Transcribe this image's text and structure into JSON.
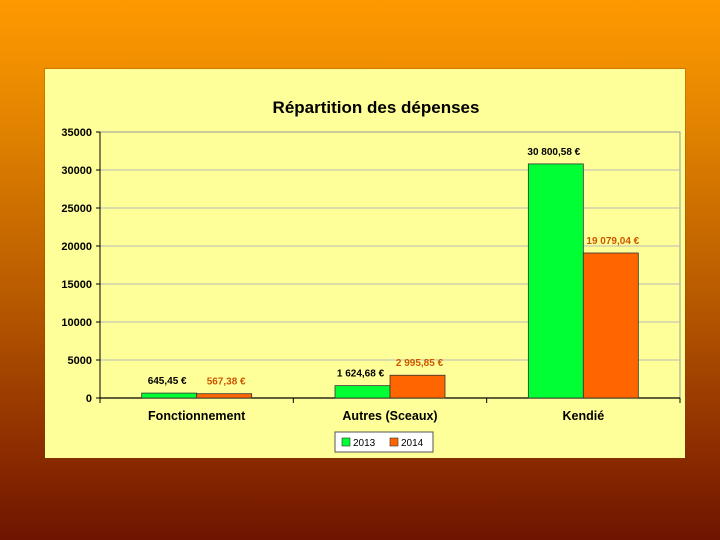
{
  "chart_data": {
    "type": "bar",
    "title": "Répartition des dépenses",
    "xlabel": "",
    "ylabel": "",
    "categories": [
      "Fonctionnement",
      "Autres (Sceaux)",
      "Kendié"
    ],
    "series": [
      {
        "name": "2013",
        "color": "#00ff33",
        "values": [
          645.45,
          1624.68,
          30800.58
        ],
        "labels": [
          "645,45 €",
          "1 624,68 €",
          "30 800,58 €"
        ],
        "label_color": "#000000"
      },
      {
        "name": "2014",
        "color": "#ff6600",
        "values": [
          567.38,
          2995.85,
          19079.04
        ],
        "labels": [
          "567,38 €",
          "2 995,85 €",
          "19 079,04 €"
        ],
        "label_color": "#cc5500"
      }
    ],
    "ylim": [
      0,
      35000
    ],
    "yticks": [
      "0",
      "5000",
      "10000",
      "15000",
      "20000",
      "25000",
      "30000",
      "35000"
    ],
    "grid": true,
    "legend_position": "bottom"
  }
}
